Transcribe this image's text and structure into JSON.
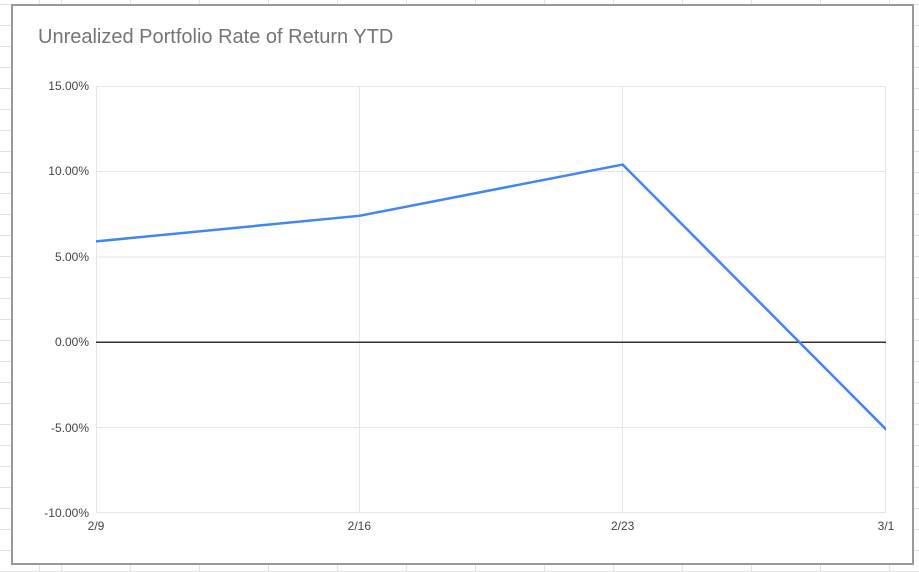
{
  "colors": {
    "series_line": "#4285f4",
    "gridline": "#e6e6e6",
    "zero_line": "#333333",
    "title_text": "#757575",
    "axis_text": "#444444",
    "card_border": "#999999",
    "sheet_gridline": "#e2e2e2"
  },
  "chart_data": {
    "type": "line",
    "title": "Unrealized Portfolio Rate of Return YTD",
    "categories": [
      "2/9",
      "2/16",
      "2/23",
      "3/1"
    ],
    "series": [
      {
        "values": [
          5.9,
          7.4,
          10.4,
          -5.1
        ],
        "color": "#4285f4"
      }
    ],
    "y_ticks": [
      {
        "value": 15,
        "label": "15.00%"
      },
      {
        "value": 10,
        "label": "10.00%"
      },
      {
        "value": 5,
        "label": "5.00%"
      },
      {
        "value": 0,
        "label": "0.00%"
      },
      {
        "value": -5,
        "label": "-5.00%"
      },
      {
        "value": -10,
        "label": "-10.00%"
      }
    ],
    "ylim": [
      -10,
      15
    ],
    "xlabel": "",
    "ylabel": "",
    "grid": true,
    "legend": "none",
    "zero_baseline": true
  }
}
